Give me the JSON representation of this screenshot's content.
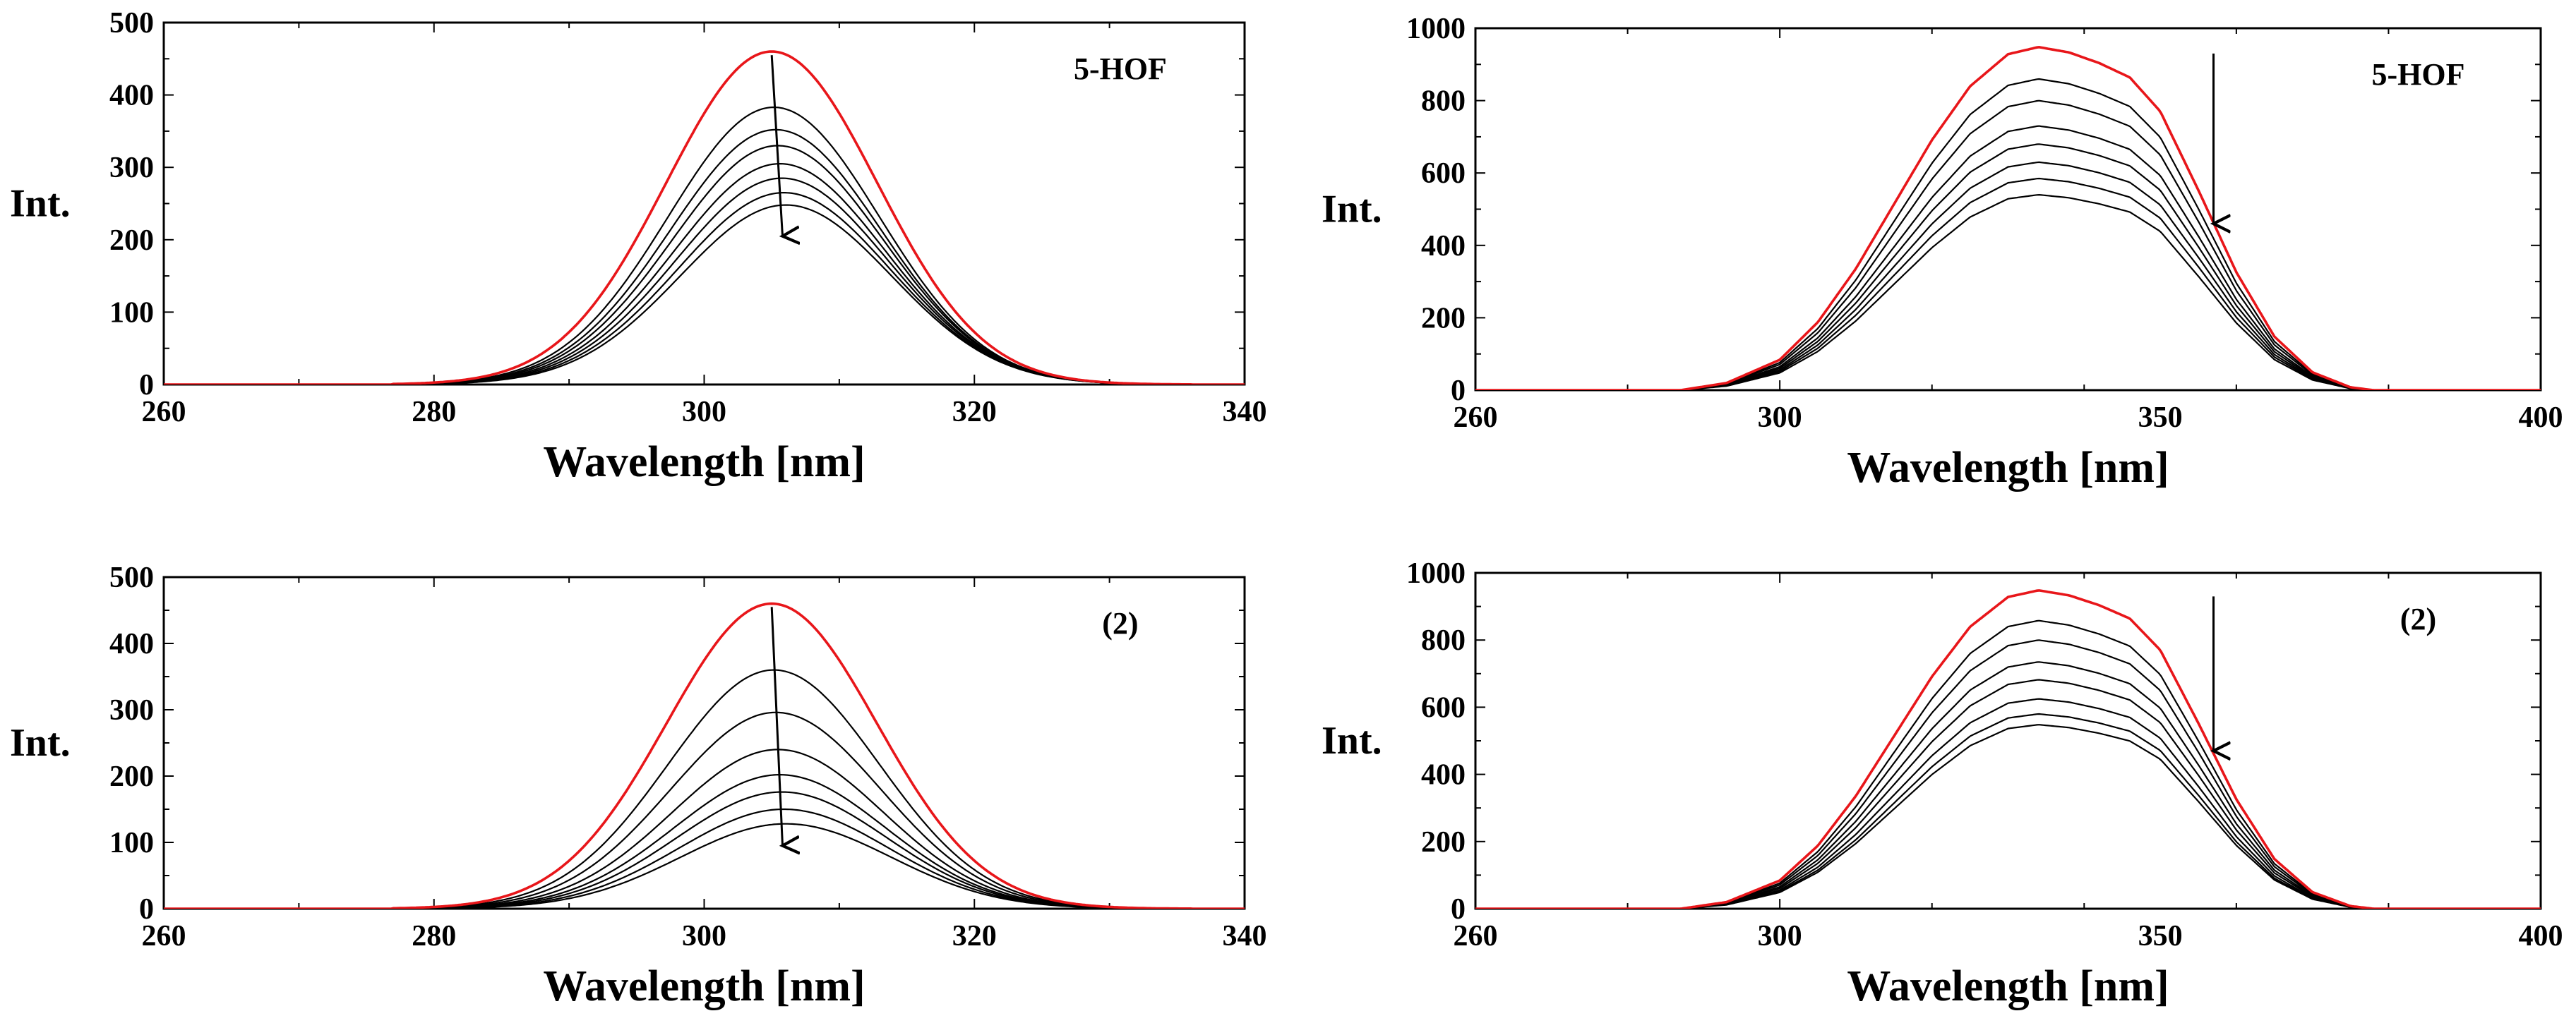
{
  "colors": {
    "highlight": "#e8161a",
    "curves": "#000000",
    "axis": "#000000",
    "background": "#ffffff"
  },
  "chart_data": [
    {
      "type": "line",
      "label": "5-HOF",
      "xlabel": "Wavelength [nm]",
      "ylabel": "Int.",
      "xlim": [
        260,
        340
      ],
      "ylim": [
        0,
        500
      ],
      "xticks": [
        260,
        280,
        300,
        320,
        340
      ],
      "yticks": [
        0,
        100,
        200,
        300,
        400,
        500
      ],
      "shape": {
        "kind": "gauss",
        "center": 305,
        "sigma": 7.8,
        "onset": 277,
        "end": 336,
        "center_shift_per_curve": 0.15
      },
      "series": [
        {
          "name": "0",
          "peak": 460,
          "highlight": true
        },
        {
          "name": "1",
          "peak": 383
        },
        {
          "name": "2",
          "peak": 352
        },
        {
          "name": "3",
          "peak": 330
        },
        {
          "name": "4",
          "peak": 305
        },
        {
          "name": "5",
          "peak": 285
        },
        {
          "name": "6",
          "peak": 265
        },
        {
          "name": "7",
          "peak": 248
        }
      ],
      "arrow": {
        "from": [
          305,
          455
        ],
        "to": [
          305.8,
          205
        ]
      }
    },
    {
      "type": "line",
      "label": "5-HOF",
      "xlabel": "Wavelength [nm]",
      "ylabel": "Int.",
      "xlim": [
        260,
        400
      ],
      "ylim": [
        0,
        1000
      ],
      "xticks": [
        260,
        300,
        350,
        400
      ],
      "yticks": [
        0,
        200,
        400,
        600,
        800,
        1000
      ],
      "shape": {
        "kind": "plateau",
        "onset": 287,
        "end": 378,
        "profile": [
          [
            287,
            0
          ],
          [
            293,
            20
          ],
          [
            300,
            85
          ],
          [
            305,
            190
          ],
          [
            310,
            340
          ],
          [
            315,
            520
          ],
          [
            320,
            700
          ],
          [
            325,
            850
          ],
          [
            330,
            940
          ],
          [
            334,
            960
          ],
          [
            338,
            945
          ],
          [
            342,
            915
          ],
          [
            346,
            875
          ],
          [
            350,
            780
          ],
          [
            355,
            560
          ],
          [
            360,
            330
          ],
          [
            365,
            150
          ],
          [
            370,
            50
          ],
          [
            375,
            8
          ],
          [
            378,
            0
          ]
        ],
        "profile_peak": 960
      },
      "series": [
        {
          "name": "0",
          "peak": 948,
          "highlight": true
        },
        {
          "name": "1",
          "peak": 860
        },
        {
          "name": "2",
          "peak": 800
        },
        {
          "name": "3",
          "peak": 730
        },
        {
          "name": "4",
          "peak": 680
        },
        {
          "name": "5",
          "peak": 630
        },
        {
          "name": "6",
          "peak": 585
        },
        {
          "name": "7",
          "peak": 540
        }
      ],
      "arrow": {
        "from": [
          357,
          930
        ],
        "to": [
          357,
          460
        ]
      }
    },
    {
      "type": "line",
      "label": "(2)",
      "xlabel": "Wavelength [nm]",
      "ylabel": "Int.",
      "xlim": [
        260,
        340
      ],
      "ylim": [
        0,
        500
      ],
      "xticks": [
        260,
        280,
        300,
        320,
        340
      ],
      "yticks": [
        0,
        100,
        200,
        300,
        400,
        500
      ],
      "shape": {
        "kind": "gauss",
        "center": 305,
        "sigma": 7.8,
        "onset": 277,
        "end": 336,
        "center_shift_per_curve": 0.15
      },
      "series": [
        {
          "name": "0",
          "peak": 460,
          "highlight": true
        },
        {
          "name": "1",
          "peak": 360
        },
        {
          "name": "2",
          "peak": 296
        },
        {
          "name": "3",
          "peak": 240
        },
        {
          "name": "4",
          "peak": 202
        },
        {
          "name": "5",
          "peak": 176
        },
        {
          "name": "6",
          "peak": 150
        },
        {
          "name": "7",
          "peak": 128
        }
      ],
      "arrow": {
        "from": [
          305,
          455
        ],
        "to": [
          305.8,
          95
        ]
      }
    },
    {
      "type": "line",
      "label": "(2)",
      "xlabel": "Wavelength [nm]",
      "ylabel": "Int.",
      "xlim": [
        260,
        400
      ],
      "ylim": [
        0,
        1000
      ],
      "xticks": [
        260,
        300,
        350,
        400
      ],
      "yticks": [
        0,
        200,
        400,
        600,
        800,
        1000
      ],
      "shape": {
        "kind": "plateau",
        "onset": 287,
        "end": 378,
        "profile": [
          [
            287,
            0
          ],
          [
            293,
            20
          ],
          [
            300,
            85
          ],
          [
            305,
            190
          ],
          [
            310,
            340
          ],
          [
            315,
            520
          ],
          [
            320,
            700
          ],
          [
            325,
            850
          ],
          [
            330,
            940
          ],
          [
            334,
            960
          ],
          [
            338,
            945
          ],
          [
            342,
            915
          ],
          [
            346,
            875
          ],
          [
            350,
            780
          ],
          [
            355,
            560
          ],
          [
            360,
            330
          ],
          [
            365,
            150
          ],
          [
            370,
            50
          ],
          [
            375,
            8
          ],
          [
            378,
            0
          ]
        ],
        "profile_peak": 960
      },
      "series": [
        {
          "name": "0",
          "peak": 948,
          "highlight": true
        },
        {
          "name": "1",
          "peak": 858
        },
        {
          "name": "2",
          "peak": 800
        },
        {
          "name": "3",
          "peak": 735
        },
        {
          "name": "4",
          "peak": 682
        },
        {
          "name": "5",
          "peak": 625
        },
        {
          "name": "6",
          "peak": 580
        },
        {
          "name": "7",
          "peak": 548
        }
      ],
      "arrow": {
        "from": [
          357,
          930
        ],
        "to": [
          357,
          470
        ]
      }
    }
  ]
}
